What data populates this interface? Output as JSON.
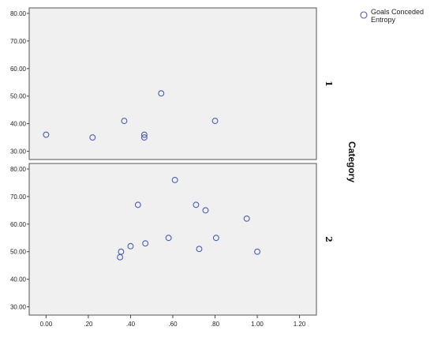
{
  "chart_data": {
    "type": "scatter",
    "legend": {
      "position": "top-right",
      "entries": [
        {
          "label_line1": "Goals Conceded",
          "label_line2": "Entropy"
        }
      ]
    },
    "facet_title": "Category",
    "xlim": [
      -0.08,
      1.28
    ],
    "ylim": [
      27,
      82
    ],
    "x_ticks": [
      "0.00",
      ".20",
      ".40",
      ".60",
      ".80",
      "1.00",
      "1.20"
    ],
    "x_tick_values": [
      0,
      0.2,
      0.4,
      0.6,
      0.8,
      1.0,
      1.2
    ],
    "y_ticks": [
      "30.00",
      "40.00",
      "50.00",
      "60.00",
      "70.00",
      "80.00"
    ],
    "y_tick_values": [
      30,
      40,
      50,
      60,
      70,
      80
    ],
    "grid": false,
    "marker_color": "#4a5fb3",
    "panel_bg": "#f0f0f0",
    "panels": [
      {
        "label": "1",
        "points": [
          {
            "x": 0.0,
            "y": 36
          },
          {
            "x": 0.22,
            "y": 35
          },
          {
            "x": 0.37,
            "y": 41
          },
          {
            "x": 0.465,
            "y": 35
          },
          {
            "x": 0.465,
            "y": 36
          },
          {
            "x": 0.545,
            "y": 51
          },
          {
            "x": 0.8,
            "y": 41
          }
        ]
      },
      {
        "label": "2",
        "points": [
          {
            "x": 0.35,
            "y": 48
          },
          {
            "x": 0.355,
            "y": 50
          },
          {
            "x": 0.4,
            "y": 52
          },
          {
            "x": 0.435,
            "y": 67
          },
          {
            "x": 0.47,
            "y": 53
          },
          {
            "x": 0.58,
            "y": 55
          },
          {
            "x": 0.61,
            "y": 76
          },
          {
            "x": 0.71,
            "y": 67
          },
          {
            "x": 0.725,
            "y": 51
          },
          {
            "x": 0.755,
            "y": 65
          },
          {
            "x": 0.805,
            "y": 55
          },
          {
            "x": 0.95,
            "y": 62
          },
          {
            "x": 1.0,
            "y": 50
          }
        ]
      }
    ]
  }
}
